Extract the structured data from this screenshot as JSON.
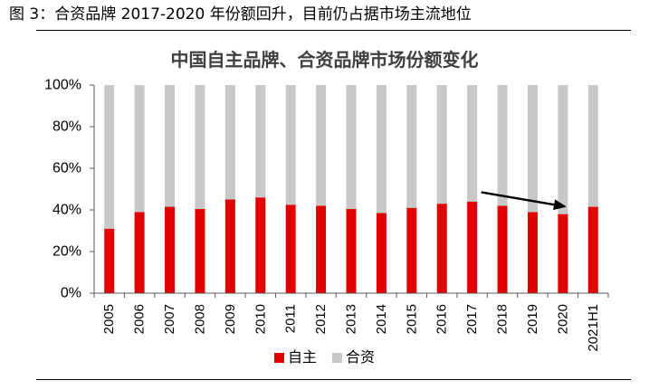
{
  "figure_caption": "图 3：合资品牌 2017-2020 年份额回升，目前仍占据市场主流地位",
  "colors": {
    "domestic": "#e00000",
    "joint_venture": "#c8c8c8",
    "arrow": "#000000"
  },
  "chart_data": {
    "type": "bar",
    "stacked": true,
    "title": "中国自主品牌、合资品牌市场份额变化",
    "categories": [
      "2005",
      "2006",
      "2007",
      "2008",
      "2009",
      "2010",
      "2011",
      "2012",
      "2013",
      "2014",
      "2015",
      "2016",
      "2017",
      "2018",
      "2019",
      "2020",
      "2021H1"
    ],
    "series": [
      {
        "name": "自主",
        "values": [
          31,
          39,
          41.5,
          40.5,
          45,
          46,
          42.5,
          42,
          40.5,
          38.5,
          41,
          43,
          44,
          42,
          39,
          38,
          41.5
        ]
      },
      {
        "name": "合资",
        "values": [
          69,
          61,
          58.5,
          59.5,
          55,
          54,
          57.5,
          58,
          59.5,
          61.5,
          59,
          57,
          56,
          58,
          61,
          62,
          58.5
        ]
      }
    ],
    "ylim": [
      0,
      100
    ],
    "yticks": [
      "0%",
      "20%",
      "40%",
      "60%",
      "80%",
      "100%"
    ],
    "ytick_values": [
      0,
      20,
      40,
      60,
      80,
      100
    ],
    "legend_position": "bottom",
    "grid": false,
    "annotation": {
      "type": "arrow",
      "from": {
        "x": "2017",
        "y": 48.5
      },
      "to": {
        "x": "2020",
        "y": 41.5
      }
    }
  }
}
